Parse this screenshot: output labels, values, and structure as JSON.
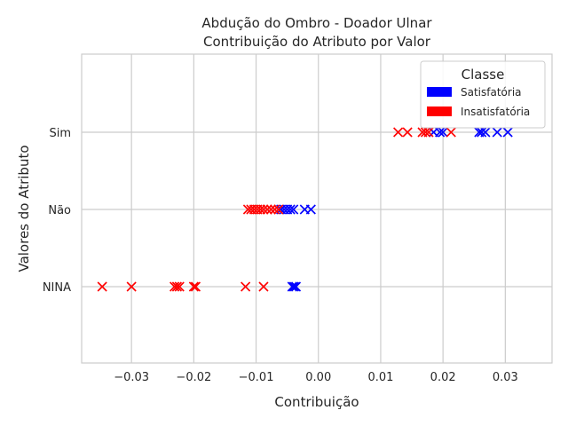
{
  "chart_data": {
    "type": "scatter",
    "title": [
      "Abdução do Ombro - Doador Ulnar",
      "Contribuição do Atributo por Valor"
    ],
    "xlabel": "Contribuição",
    "ylabel": "Valores do Atributo",
    "xlim": [
      -0.038,
      0.0375
    ],
    "x_ticks": [
      -0.03,
      -0.02,
      -0.01,
      0.0,
      0.01,
      0.02,
      0.03
    ],
    "x_tick_labels": [
      "−0.03",
      "−0.02",
      "−0.01",
      "0.00",
      "0.01",
      "0.02",
      "0.03"
    ],
    "y_categories": [
      "NINA",
      "Não",
      "Sim"
    ],
    "grid": true,
    "legend": {
      "title": "Classe",
      "placement": "top-right",
      "entries": [
        {
          "name": "Satisfatória",
          "color": "#0000ff"
        },
        {
          "name": "Insatisfatória",
          "color": "#ff0000"
        }
      ]
    },
    "marker": "x",
    "series": [
      {
        "name": "Satisfatória",
        "color": "#0000ff",
        "points": [
          {
            "y": "Sim",
            "x": 0.0185
          },
          {
            "y": "Sim",
            "x": 0.0195
          },
          {
            "y": "Sim",
            "x": 0.02
          },
          {
            "y": "Sim",
            "x": 0.0258
          },
          {
            "y": "Sim",
            "x": 0.0262
          },
          {
            "y": "Sim",
            "x": 0.0268
          },
          {
            "y": "Sim",
            "x": 0.0287
          },
          {
            "y": "Sim",
            "x": 0.0304
          },
          {
            "y": "Não",
            "x": -0.006
          },
          {
            "y": "Não",
            "x": -0.0055
          },
          {
            "y": "Não",
            "x": -0.005
          },
          {
            "y": "Não",
            "x": -0.0045
          },
          {
            "y": "Não",
            "x": -0.004
          },
          {
            "y": "Não",
            "x": -0.0022
          },
          {
            "y": "Não",
            "x": -0.0012
          },
          {
            "y": "NINA",
            "x": -0.0042
          },
          {
            "y": "NINA",
            "x": -0.0039
          },
          {
            "y": "NINA",
            "x": -0.0036
          }
        ]
      },
      {
        "name": "Insatisfatória",
        "color": "#ff0000",
        "points": [
          {
            "y": "Sim",
            "x": 0.0128
          },
          {
            "y": "Sim",
            "x": 0.0143
          },
          {
            "y": "Sim",
            "x": 0.0167
          },
          {
            "y": "Sim",
            "x": 0.0172
          },
          {
            "y": "Sim",
            "x": 0.0177
          },
          {
            "y": "Sim",
            "x": 0.0213
          },
          {
            "y": "Não",
            "x": -0.0113
          },
          {
            "y": "Não",
            "x": -0.0108
          },
          {
            "y": "Não",
            "x": -0.0103
          },
          {
            "y": "Não",
            "x": -0.0098
          },
          {
            "y": "Não",
            "x": -0.0093
          },
          {
            "y": "Não",
            "x": -0.0088
          },
          {
            "y": "Não",
            "x": -0.0082
          },
          {
            "y": "Não",
            "x": -0.0076
          },
          {
            "y": "Não",
            "x": -0.007
          },
          {
            "y": "Não",
            "x": -0.0064
          },
          {
            "y": "NINA",
            "x": -0.0347
          },
          {
            "y": "NINA",
            "x": -0.03
          },
          {
            "y": "NINA",
            "x": -0.0231
          },
          {
            "y": "NINA",
            "x": -0.0227
          },
          {
            "y": "NINA",
            "x": -0.0223
          },
          {
            "y": "NINA",
            "x": -0.02
          },
          {
            "y": "NINA",
            "x": -0.0197
          },
          {
            "y": "NINA",
            "x": -0.0117
          },
          {
            "y": "NINA",
            "x": -0.0088
          }
        ]
      }
    ]
  }
}
